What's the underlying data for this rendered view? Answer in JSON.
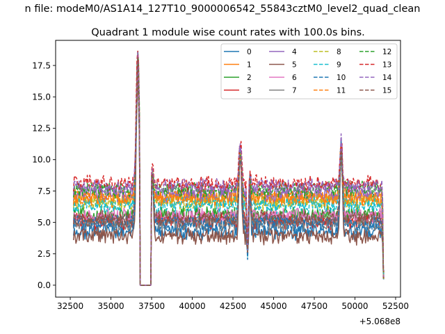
{
  "chart_data": {
    "type": "line",
    "suptitle": "n file: modeM0/AS1A14_127T10_9000006542_55843cztM0_level2_quad_clean",
    "title": "Quadrant 1 module wise count rates with 100.0s bins.",
    "xlabel": "",
    "ylabel": "",
    "x_offset_label": "+5.068e8",
    "xlim": [
      31600,
      52800
    ],
    "ylim": [
      -0.95,
      19.5
    ],
    "x_range": [
      32700,
      51800
    ],
    "x_ticks": [
      32500,
      35000,
      37500,
      40000,
      42500,
      45000,
      47500,
      50000,
      52500
    ],
    "x_tick_labels": [
      "32500",
      "35000",
      "37500",
      "40000",
      "42500",
      "45000",
      "47500",
      "50000",
      "52500"
    ],
    "y_ticks": [
      0.0,
      2.5,
      5.0,
      7.5,
      10.0,
      12.5,
      15.0,
      17.5
    ],
    "y_tick_labels": [
      "0.0",
      "2.5",
      "5.0",
      "7.5",
      "10.0",
      "12.5",
      "15.0",
      "17.5"
    ],
    "gap_ranges": [
      [
        36800,
        37450
      ]
    ],
    "spikes": [
      {
        "center": 36650,
        "width": 130,
        "peak": 18.0
      },
      {
        "center": 37550,
        "width": 90,
        "peak": 9.0
      },
      {
        "center": 42950,
        "width": 110,
        "peak": 11.0
      },
      {
        "center": 43550,
        "width": 60,
        "peak": 8.5
      },
      {
        "center": 49150,
        "width": 110,
        "peak": 11.0
      }
    ],
    "dips": [
      {
        "center": 43400,
        "width": 60,
        "value": 2.7
      }
    ],
    "series": [
      {
        "name": "0",
        "color": "#1f77b4",
        "dash": "solid",
        "base": 4.3,
        "peak_scale": 1.0
      },
      {
        "name": "1",
        "color": "#ff7f0e",
        "dash": "solid",
        "base": 6.9,
        "peak_scale": 0.98
      },
      {
        "name": "2",
        "color": "#2ca02c",
        "dash": "solid",
        "base": 5.6,
        "peak_scale": 0.99
      },
      {
        "name": "3",
        "color": "#d62728",
        "dash": "solid",
        "base": 5.1,
        "peak_scale": 1.0
      },
      {
        "name": "4",
        "color": "#9467bd",
        "dash": "solid",
        "base": 7.3,
        "peak_scale": 1.01
      },
      {
        "name": "5",
        "color": "#8c564b",
        "dash": "solid",
        "base": 3.9,
        "peak_scale": 0.97
      },
      {
        "name": "6",
        "color": "#e377c2",
        "dash": "solid",
        "base": 5.5,
        "peak_scale": 1.0
      },
      {
        "name": "7",
        "color": "#7f7f7f",
        "dash": "solid",
        "base": 4.9,
        "peak_scale": 0.99
      },
      {
        "name": "8",
        "color": "#bcbd22",
        "dash": "dashed",
        "base": 6.6,
        "peak_scale": 0.96
      },
      {
        "name": "9",
        "color": "#17becf",
        "dash": "dashed",
        "base": 6.4,
        "peak_scale": 0.98
      },
      {
        "name": "10",
        "color": "#1f77b4",
        "dash": "dashed",
        "base": 5.0,
        "peak_scale": 0.97
      },
      {
        "name": "11",
        "color": "#ff7f0e",
        "dash": "dashed",
        "base": 7.0,
        "peak_scale": 0.99
      },
      {
        "name": "12",
        "color": "#2ca02c",
        "dash": "dashed",
        "base": 7.6,
        "peak_scale": 1.0
      },
      {
        "name": "13",
        "color": "#d62728",
        "dash": "dashed",
        "base": 8.1,
        "peak_scale": 1.04
      },
      {
        "name": "14",
        "color": "#9467bd",
        "dash": "dashed",
        "base": 7.8,
        "peak_scale": 1.02
      },
      {
        "name": "15",
        "color": "#8c564b",
        "dash": "dashed",
        "base": 5.3,
        "peak_scale": 0.98
      }
    ]
  }
}
